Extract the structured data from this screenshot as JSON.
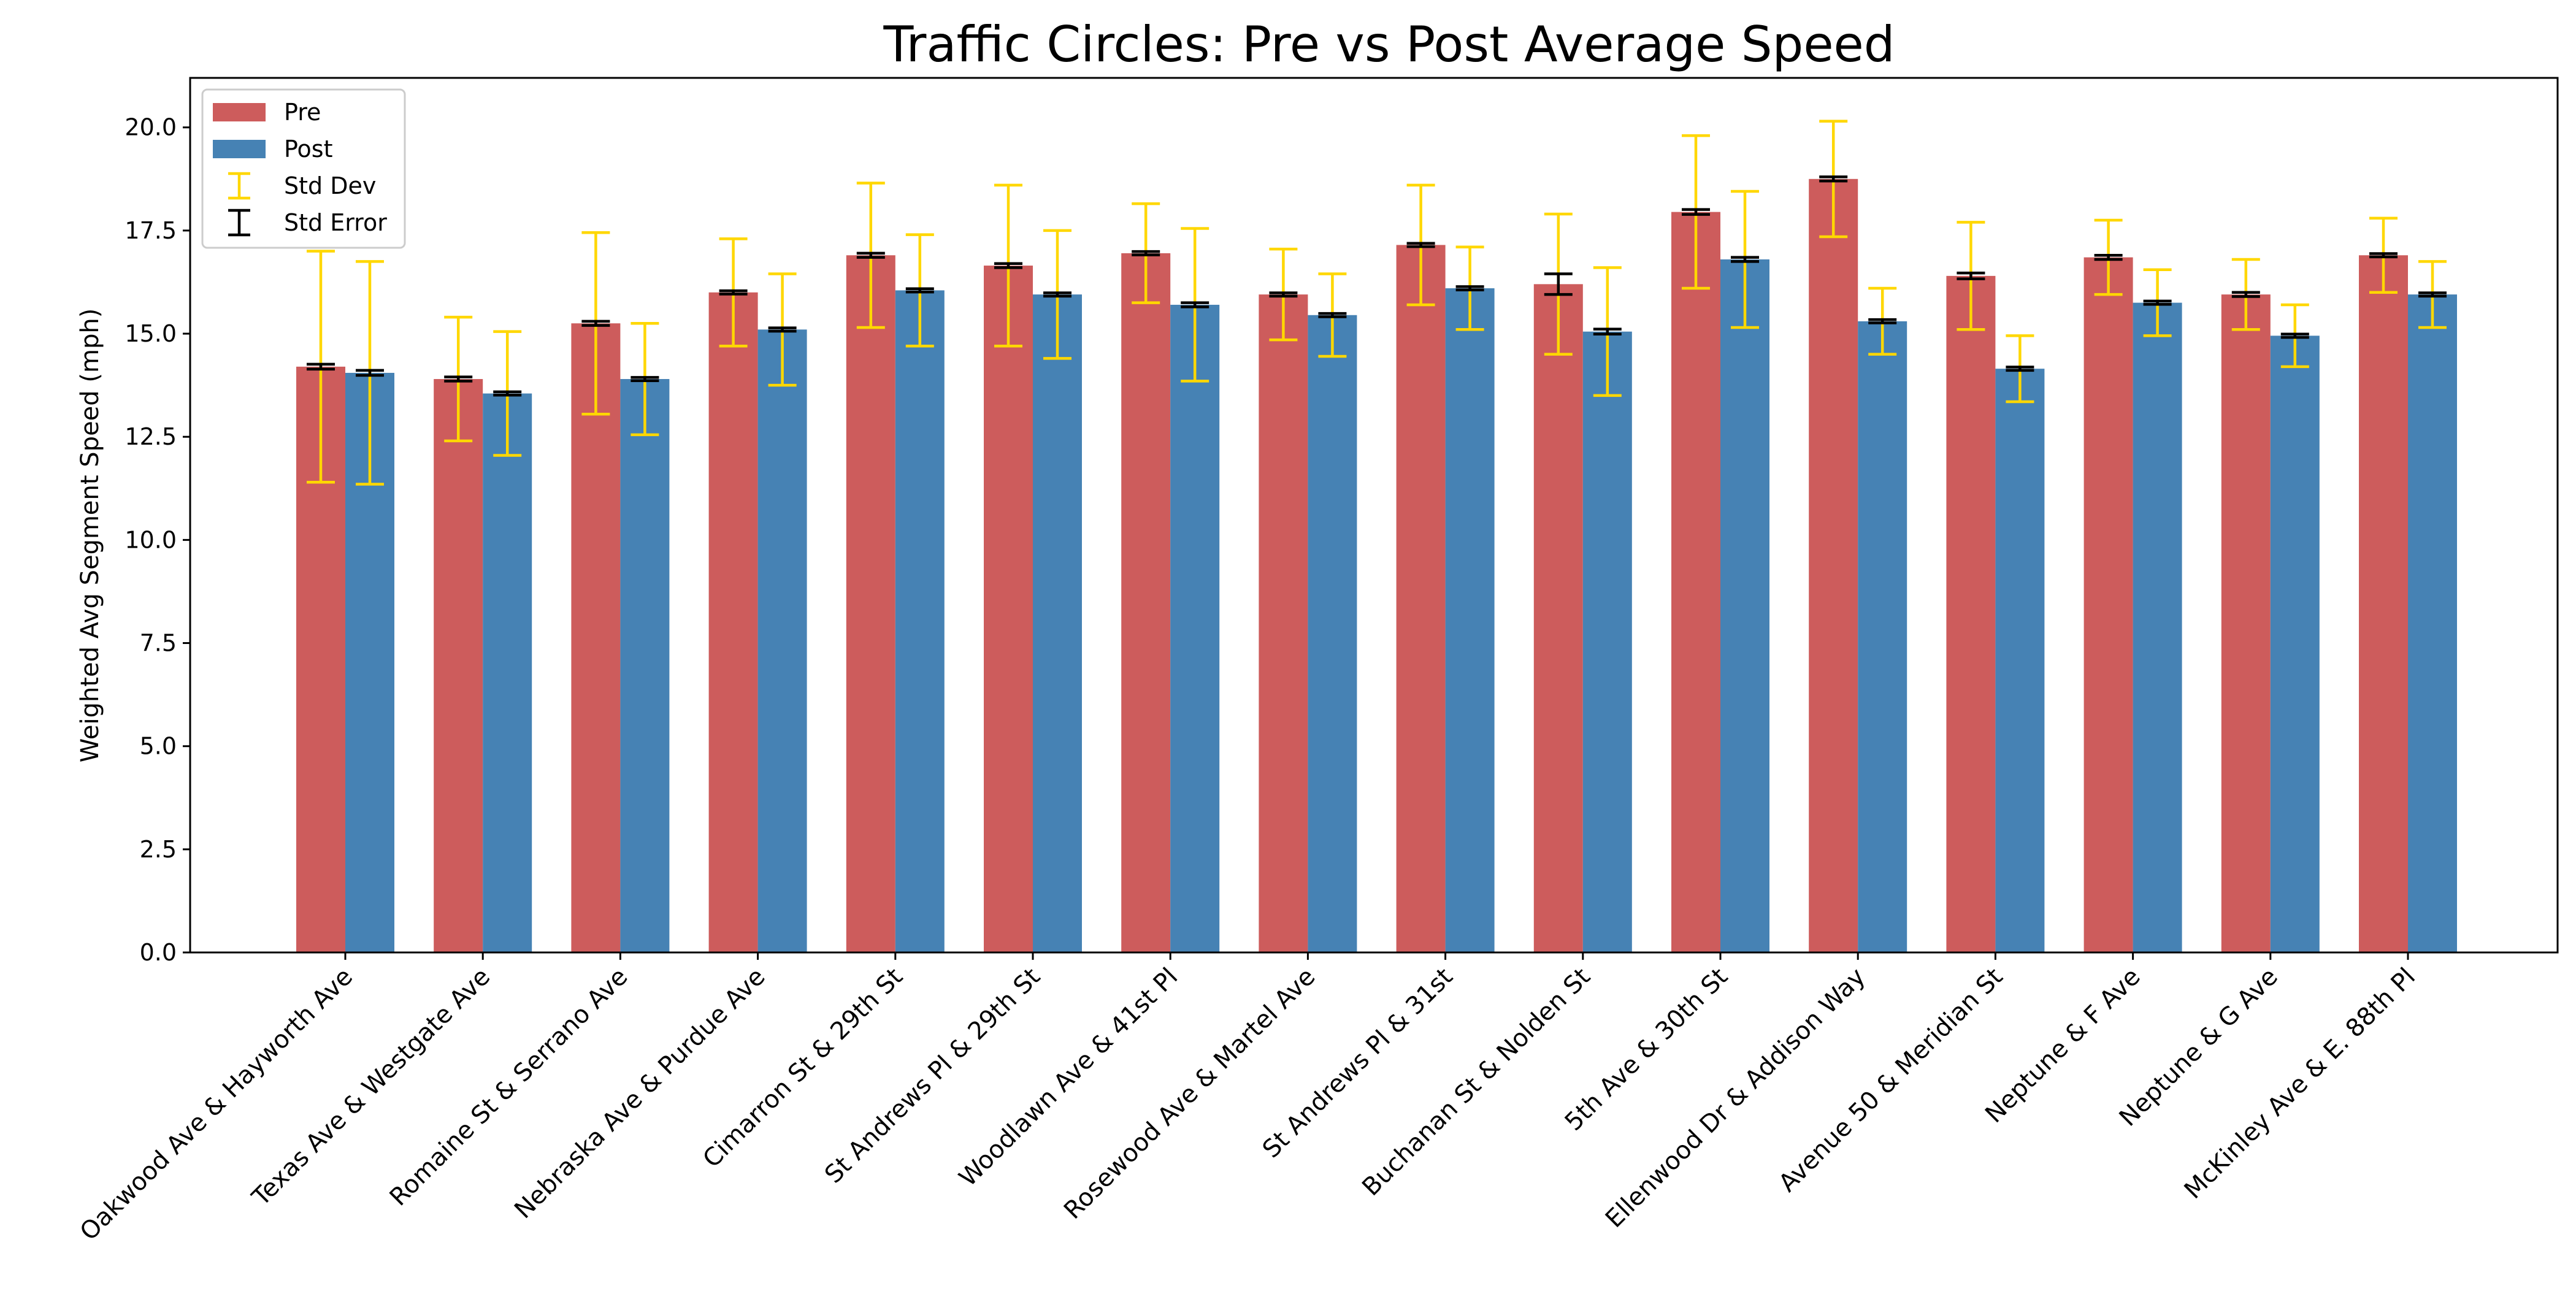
{
  "chart_data": {
    "type": "bar",
    "title": "Traffic Circles: Pre vs Post Average Speed",
    "xlabel": "",
    "ylabel": "Weighted Avg Segment Speed (mph)",
    "ylim": [
      0,
      21.2
    ],
    "yticks": [
      0.0,
      2.5,
      5.0,
      7.5,
      10.0,
      12.5,
      15.0,
      17.5,
      20.0
    ],
    "ytick_labels": [
      "0.0",
      "2.5",
      "5.0",
      "7.5",
      "10.0",
      "12.5",
      "15.0",
      "17.5",
      "20.0"
    ],
    "grid": false,
    "legend_position": "top-left",
    "categories": [
      "Oakwood Ave & Hayworth Ave",
      "Texas Ave & Westgate Ave",
      "Romaine St & Serrano Ave",
      "Nebraska Ave & Purdue Ave",
      "Cimarron St & 29th St",
      "St Andrews Pl & 29th St",
      "Woodlawn Ave & 41st Pl",
      "Rosewood Ave & Martel Ave",
      "St Andrews Pl & 31st",
      "Buchanan St & Nolden St",
      "5th Ave & 30th St",
      "Ellenwood Dr & Addison Way",
      "Avenue 50 & Meridian St",
      "Neptune & F Ave",
      "Neptune & G Ave",
      "McKinley Ave & E. 88th Pl"
    ],
    "series": [
      {
        "name": "Pre",
        "color": "#cd5c5c",
        "values": [
          14.2,
          13.9,
          15.25,
          16.0,
          16.9,
          16.65,
          16.95,
          15.95,
          17.15,
          16.2,
          17.95,
          18.75,
          16.4,
          16.85,
          15.95,
          16.9
        ],
        "std_dev": [
          2.8,
          1.5,
          2.2,
          1.3,
          1.75,
          1.95,
          1.2,
          1.1,
          1.45,
          1.7,
          1.85,
          1.4,
          1.3,
          0.9,
          0.85,
          0.9
        ],
        "std_err": [
          0.06,
          0.05,
          0.05,
          0.04,
          0.05,
          0.05,
          0.04,
          0.04,
          0.04,
          0.25,
          0.06,
          0.05,
          0.07,
          0.05,
          0.05,
          0.04
        ]
      },
      {
        "name": "Post",
        "color": "#4682b4",
        "values": [
          14.05,
          13.55,
          13.9,
          15.1,
          16.05,
          15.95,
          15.7,
          15.45,
          16.1,
          15.05,
          16.8,
          15.3,
          14.15,
          15.75,
          14.95,
          15.95
        ],
        "std_dev": [
          2.7,
          1.5,
          1.35,
          1.35,
          1.35,
          1.55,
          1.85,
          1.0,
          1.0,
          1.55,
          1.65,
          0.8,
          0.8,
          0.8,
          0.75,
          0.8
        ],
        "std_err": [
          0.06,
          0.04,
          0.04,
          0.04,
          0.04,
          0.04,
          0.05,
          0.04,
          0.04,
          0.06,
          0.05,
          0.04,
          0.04,
          0.04,
          0.04,
          0.04
        ]
      }
    ],
    "legend": {
      "entries": [
        "Pre",
        "Post",
        "Std Dev",
        "Std Error"
      ]
    },
    "error_bar_colors": {
      "std_dev": "#ffd700",
      "std_err": "#000000"
    }
  }
}
